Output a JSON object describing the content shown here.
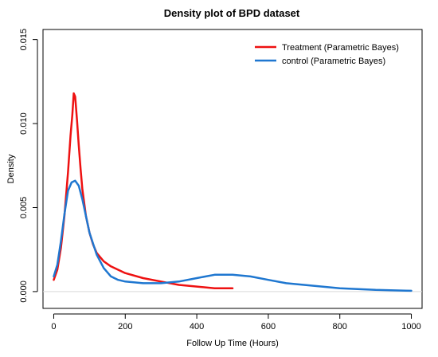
{
  "chart_data": {
    "type": "line",
    "title": "Density plot of BPD dataset",
    "xlabel": "Follow Up Time (Hours)",
    "ylabel": "Density",
    "xlim": [
      -30,
      1030
    ],
    "ylim": [
      -0.001,
      0.0156
    ],
    "xticks": [
      0,
      200,
      400,
      600,
      800,
      1000
    ],
    "xtick_labels": [
      "0",
      "200",
      "400",
      "600",
      "800",
      "1000"
    ],
    "yticks": [
      0.0,
      0.005,
      0.01,
      0.015
    ],
    "ytick_labels": [
      "0.000",
      "0.005",
      "0.010",
      "0.015"
    ],
    "grid": false,
    "legend_position": "top-right",
    "series": [
      {
        "name": "Treatment (Parametric Bayes)",
        "color": "#ee1111",
        "x": [
          0,
          10,
          20,
          30,
          40,
          47,
          52,
          56,
          60,
          65,
          70,
          75,
          80,
          90,
          100,
          110,
          120,
          140,
          160,
          180,
          200,
          250,
          300,
          350,
          400,
          450,
          500
        ],
        "y": [
          0.0007,
          0.0013,
          0.0026,
          0.0045,
          0.0071,
          0.0093,
          0.0105,
          0.0118,
          0.0116,
          0.0102,
          0.0087,
          0.0073,
          0.0061,
          0.0045,
          0.0035,
          0.0028,
          0.0023,
          0.0018,
          0.0015,
          0.0013,
          0.0011,
          0.0008,
          0.0006,
          0.0004,
          0.0003,
          0.0002,
          0.0002
        ]
      },
      {
        "name": "control (Parametric Bayes)",
        "color": "#1f77d0",
        "x": [
          0,
          10,
          20,
          30,
          40,
          50,
          60,
          70,
          80,
          90,
          100,
          120,
          140,
          160,
          180,
          200,
          250,
          300,
          350,
          400,
          450,
          500,
          550,
          600,
          650,
          700,
          800,
          900,
          1000
        ],
        "y": [
          0.0009,
          0.0016,
          0.003,
          0.0046,
          0.006,
          0.0065,
          0.0066,
          0.0063,
          0.0055,
          0.0045,
          0.0035,
          0.0022,
          0.0014,
          0.0009,
          0.0007,
          0.0006,
          0.0005,
          0.0005,
          0.0006,
          0.0008,
          0.001,
          0.001,
          0.0009,
          0.0007,
          0.0005,
          0.0004,
          0.0002,
          0.0001,
          5e-05
        ]
      }
    ]
  }
}
